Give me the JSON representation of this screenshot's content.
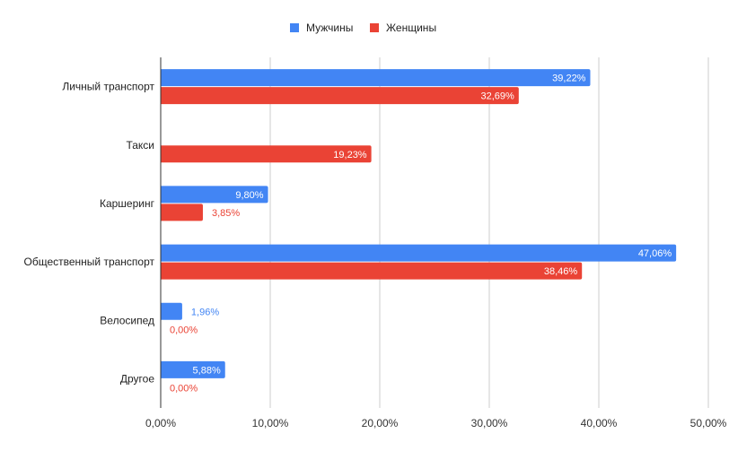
{
  "chart_data": {
    "type": "bar",
    "orientation": "horizontal",
    "categories": [
      "Личный транспорт",
      "Такси",
      "Каршеринг",
      "Общественный транспорт",
      "Велосипед",
      "Другое"
    ],
    "series": [
      {
        "name": "Мужчины",
        "color": "#4285f4",
        "values": [
          39.22,
          null,
          9.8,
          47.06,
          1.96,
          5.88
        ],
        "labels": [
          "39,22%",
          "",
          "9,80%",
          "47,06%",
          "1,96%",
          "5,88%"
        ]
      },
      {
        "name": "Женщины",
        "color": "#ea4335",
        "values": [
          32.69,
          19.23,
          3.85,
          38.46,
          0.0,
          0.0
        ],
        "labels": [
          "32,69%",
          "19,23%",
          "3,85%",
          "38,46%",
          "0,00%",
          "0,00%"
        ]
      }
    ],
    "xlim": [
      0,
      50
    ],
    "xticks": [
      0,
      10,
      20,
      30,
      40,
      50
    ],
    "xtick_labels": [
      "0,00%",
      "10,00%",
      "20,00%",
      "30,00%",
      "40,00%",
      "50,00%"
    ],
    "grid": true,
    "legend_position": "top"
  }
}
